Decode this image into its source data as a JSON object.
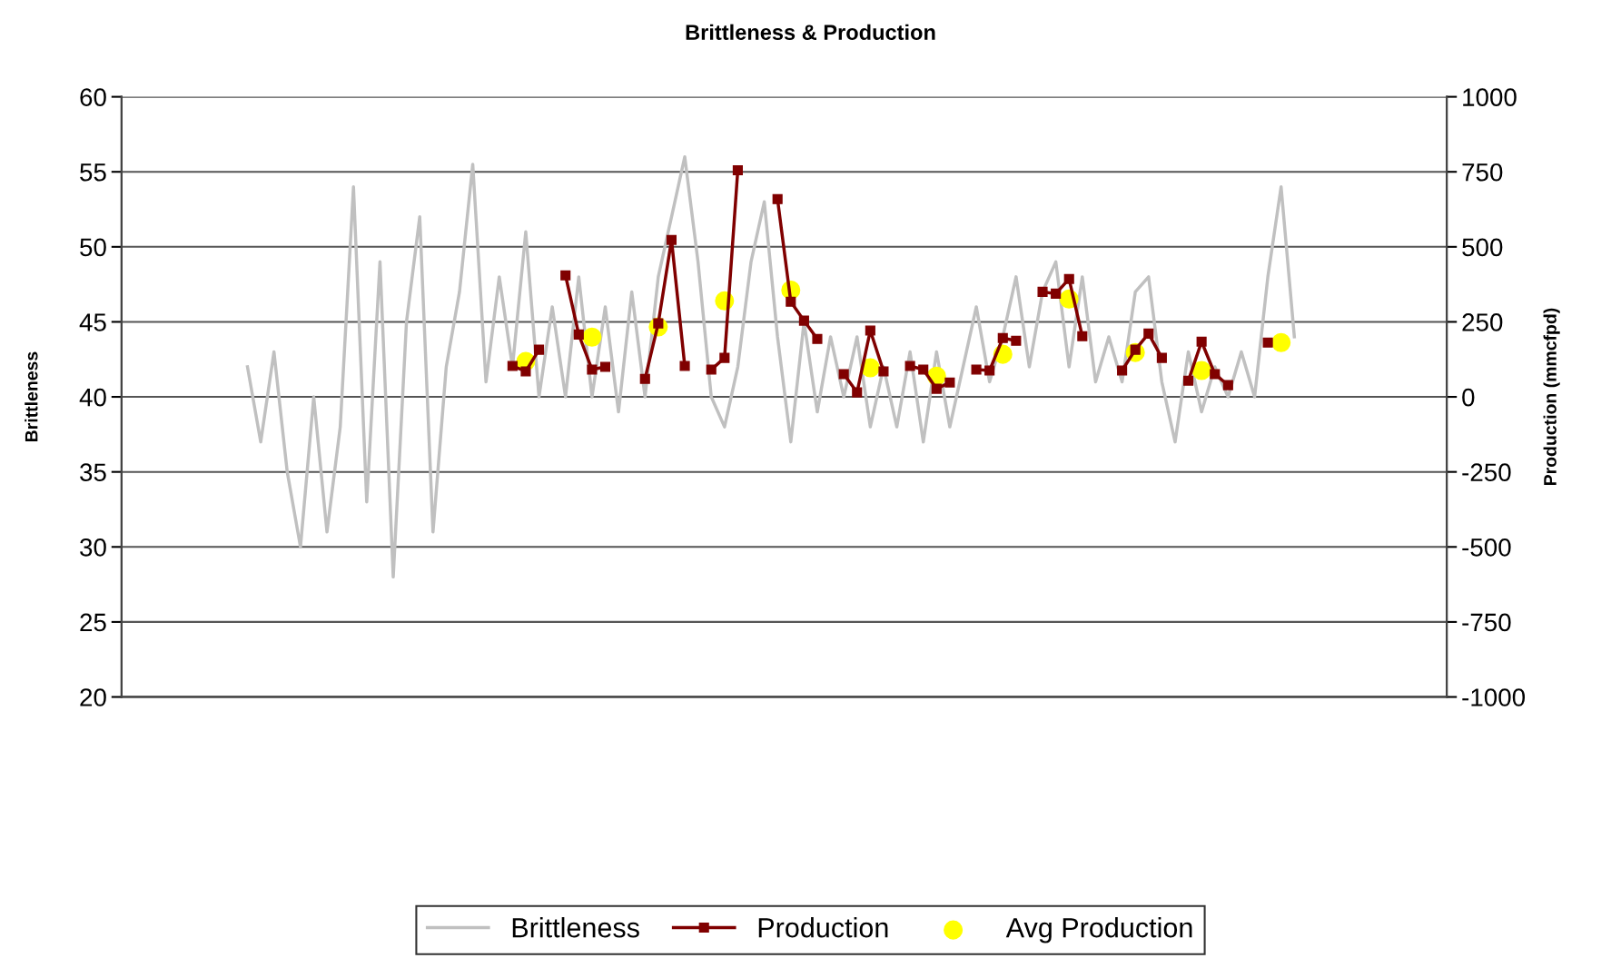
{
  "chart_data": {
    "type": "line",
    "title": "Brittleness & Production",
    "ylabel": "Brittleness",
    "y2label": "Production (mmcfpd)",
    "categories": [
      null,
      null,
      null,
      null,
      null,
      null,
      null,
      null,
      null,
      null,
      null,
      null,
      null,
      null,
      null,
      null,
      null,
      null,
      null,
      null,
      null,
      null,
      null,
      null,
      null,
      null,
      null,
      null,
      null,
      null,
      null,
      null,
      null,
      null,
      null,
      null,
      null,
      null,
      null,
      null,
      null,
      null,
      null,
      null,
      null,
      null,
      null,
      null,
      null,
      null,
      null,
      null,
      null,
      null,
      null,
      null,
      null,
      null,
      null,
      null,
      null,
      null,
      null,
      null,
      null,
      null,
      null,
      null,
      null,
      null,
      null,
      null,
      null,
      null,
      null,
      null,
      null,
      null,
      null,
      null,
      null,
      null,
      null,
      null,
      null,
      null,
      null,
      null,
      null,
      null,
      null,
      null,
      null,
      null,
      null,
      null,
      null,
      null,
      null,
      null
    ],
    "ylim": [
      20,
      60
    ],
    "yticks": [
      20,
      25,
      30,
      35,
      40,
      45,
      50,
      55,
      60
    ],
    "y2lim": [
      -1000,
      1000
    ],
    "y2ticks": [
      -1000,
      -750,
      -500,
      -250,
      0,
      250,
      500,
      750,
      1000
    ],
    "grid": "y",
    "legend": "bottom",
    "tick_labels": "y",
    "series": [
      {
        "name": "Brittleness",
        "color": "#c0c0c0",
        "marker": "none",
        "values": [
          null,
          null,
          null,
          null,
          null,
          null,
          null,
          null,
          null,
          42,
          37,
          43,
          35,
          30,
          40,
          31,
          38,
          54,
          33,
          49,
          28,
          45,
          52,
          31,
          42,
          47,
          55.5,
          41,
          48,
          42,
          51,
          40,
          46,
          40,
          48,
          40,
          46,
          39,
          47,
          40,
          48,
          52,
          56,
          49,
          40,
          38,
          42,
          49,
          53,
          44,
          37,
          45,
          39,
          44,
          40,
          44,
          38,
          42,
          38,
          43,
          37,
          43,
          38,
          42,
          46,
          41,
          44,
          48,
          42,
          47,
          49,
          42,
          48,
          41,
          44,
          41,
          47,
          48,
          41,
          37,
          43,
          39,
          42,
          40,
          43,
          40,
          48,
          54,
          44,
          null,
          null,
          null,
          null,
          null,
          null,
          null,
          null,
          null,
          null,
          null
        ]
      },
      {
        "name": "Production",
        "axis": "y2",
        "color": "#800000",
        "marker": "square",
        "values": [
          null,
          null,
          null,
          null,
          null,
          null,
          null,
          null,
          null,
          null,
          null,
          null,
          null,
          null,
          null,
          null,
          null,
          null,
          null,
          null,
          null,
          null,
          null,
          null,
          null,
          null,
          null,
          null,
          null,
          103,
          85,
          157,
          null,
          405,
          208,
          91,
          100,
          null,
          null,
          60,
          245,
          523,
          103,
          null,
          91,
          130,
          755,
          null,
          null,
          659,
          317,
          254,
          193,
          null,
          76,
          15,
          221,
          85,
          null,
          103,
          91,
          27,
          48,
          null,
          91,
          88,
          196,
          187,
          null,
          350,
          344,
          393,
          202,
          null,
          null,
          88,
          157,
          211,
          130,
          null,
          54,
          184,
          76,
          39,
          null,
          null,
          181,
          null,
          null,
          null,
          null,
          null,
          null,
          null,
          null,
          null,
          null,
          null,
          null,
          null
        ]
      },
      {
        "name": "Avg Production",
        "type": "scatter",
        "axis": "y2",
        "color": "#ffff00",
        "marker": "circle",
        "values": [
          null,
          null,
          null,
          null,
          null,
          null,
          null,
          null,
          null,
          null,
          null,
          null,
          null,
          null,
          null,
          null,
          null,
          null,
          null,
          null,
          null,
          null,
          null,
          null,
          null,
          null,
          null,
          null,
          null,
          null,
          118,
          null,
          null,
          null,
          null,
          199,
          null,
          null,
          null,
          null,
          233,
          null,
          null,
          null,
          null,
          320,
          null,
          null,
          null,
          null,
          356,
          null,
          null,
          null,
          null,
          null,
          97,
          null,
          null,
          null,
          null,
          69,
          null,
          null,
          null,
          null,
          142,
          null,
          null,
          null,
          null,
          326,
          null,
          null,
          null,
          null,
          148,
          null,
          null,
          null,
          null,
          88,
          null,
          null,
          null,
          null,
          null,
          181,
          null,
          null,
          null,
          null,
          null,
          null,
          null,
          null,
          null,
          null,
          null,
          null
        ]
      }
    ]
  }
}
